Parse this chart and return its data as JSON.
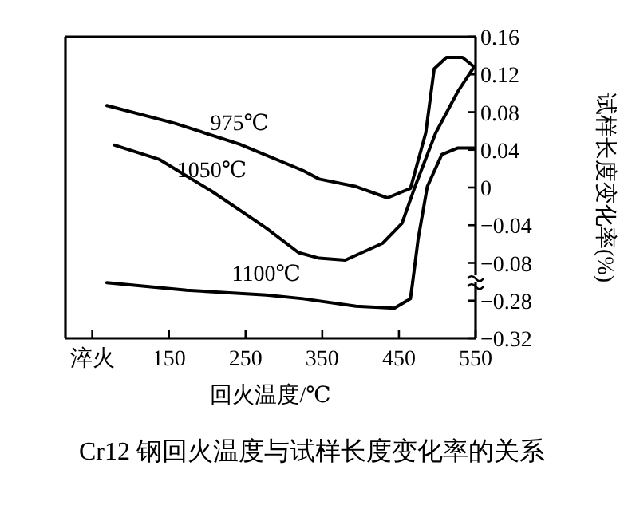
{
  "chart_data": [
    {
      "type": "line",
      "ylabel": "试样长度变化率(%)",
      "xlim": [
        15,
        550
      ],
      "ylim": [
        -0.1,
        0.16
      ],
      "yticks": [
        0.16,
        0.12,
        0.08,
        0.04,
        0,
        -0.04,
        -0.08
      ],
      "tick_labels": "y",
      "grid": false,
      "legend": false,
      "marker": "none",
      "line_style": "solid",
      "series": [
        {
          "name": "975℃",
          "color": "#000000",
          "x": [
            69,
            158,
            242,
            325,
            346,
            394,
            435,
            465,
            485,
            496,
            512,
            533,
            548
          ],
          "values": [
            0.087,
            0.068,
            0.046,
            0.018,
            0.009,
            0.001,
            -0.011,
            -0.001,
            0.058,
            0.126,
            0.138,
            0.138,
            0.128
          ]
        },
        {
          "name": "1050℃",
          "color": "#000000",
          "x": [
            79,
            137,
            206,
            277,
            319,
            346,
            380,
            429,
            454,
            471,
            498,
            527,
            548
          ],
          "values": [
            0.045,
            0.03,
            -0.004,
            -0.043,
            -0.069,
            -0.075,
            -0.077,
            -0.059,
            -0.038,
            0.001,
            0.058,
            0.102,
            0.128
          ]
        },
        {
          "color": "#000000",
          "x": [
            468,
            475,
            487,
            506,
            527,
            548
          ],
          "values": [
            -0.1,
            -0.055,
            0.001,
            0.035,
            0.042,
            0.042
          ]
        }
      ]
    },
    {
      "type": "line",
      "title": "Cr12 钢回火温度与试样长度变化率的关系",
      "xlabel": "回火温度/℃",
      "xlim": [
        15,
        550
      ],
      "xticks": [
        {
          "value": 50,
          "label": "淬火"
        },
        150,
        250,
        350,
        450,
        550
      ],
      "ylim": [
        -0.32,
        -0.26
      ],
      "yticks": [
        -0.28,
        -0.32
      ],
      "grid": false,
      "legend": false,
      "marker": "none",
      "line_style": "solid",
      "series": [
        {
          "name": "1100℃",
          "color": "#000000",
          "x": [
            69,
            173,
            277,
            325,
            394,
            444,
            465,
            468
          ],
          "values": [
            -0.261,
            -0.269,
            -0.274,
            -0.278,
            -0.286,
            -0.288,
            -0.278,
            -0.26
          ]
        }
      ]
    }
  ]
}
